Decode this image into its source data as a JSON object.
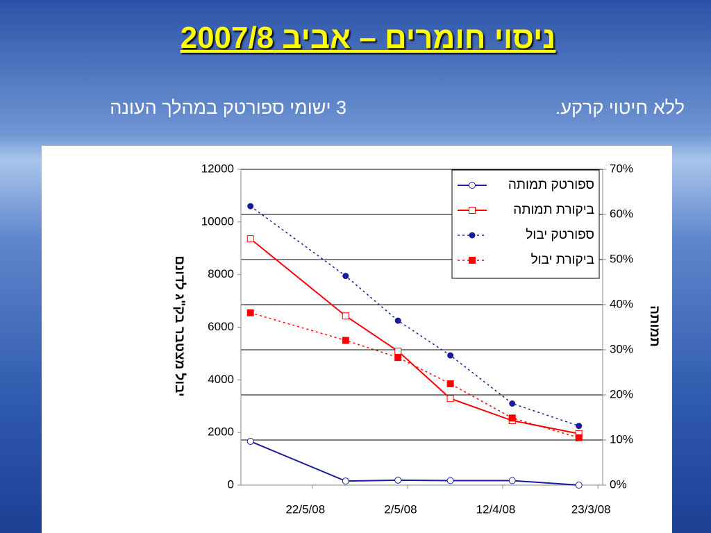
{
  "title": "ניסוי חומרים – אביב 2007/8",
  "subtitle_right": "ללא חיטוי קרקע.",
  "subtitle_left": "3 ישומי ספורטק במהלך העונה",
  "chart_data": {
    "type": "line",
    "x": [
      "4/6/08",
      "15/5/08",
      "4/5/08",
      "23/4/08",
      "10/4/08",
      "27/3/08"
    ],
    "xlim": [
      "6/6/08",
      "22/3/08"
    ],
    "xticks": [
      "22/5/08",
      "2/5/08",
      "12/4/08",
      "23/3/08"
    ],
    "ylim": [
      0,
      12000
    ],
    "yticks": [
      0,
      2000,
      4000,
      6000,
      8000,
      10000,
      12000
    ],
    "y2lim": [
      0,
      70
    ],
    "y2ticks": [
      {
        "value": 0,
        "label": "0%"
      },
      {
        "value": 10,
        "label": "10%"
      },
      {
        "value": 20,
        "label": "20%"
      },
      {
        "value": 30,
        "label": "30%"
      },
      {
        "value": 40,
        "label": "40%"
      },
      {
        "value": 50,
        "label": "50%"
      },
      {
        "value": 60,
        "label": "60%"
      },
      {
        "value": 70,
        "label": "70%"
      }
    ],
    "ylabel": "יבול מצטבר בק\"ג לדונם",
    "y2label": "תמותה",
    "grid": true,
    "legend": "upper-right",
    "series": [
      {
        "name": "ספורטק תמותה",
        "color": "#1a1a9c",
        "axis": "y2",
        "marker": "circle-open",
        "dash": "solid",
        "values": [
          9.7,
          0.9,
          1.1,
          1.0,
          1.0,
          0
        ]
      },
      {
        "name": "ביקורת תמותה",
        "color": "#ff0000",
        "axis": "y2",
        "marker": "square-open",
        "dash": "solid",
        "values": [
          54.6,
          37.5,
          29.7,
          19.2,
          14.3,
          11.4
        ]
      },
      {
        "name": "ספורטק יבול",
        "color": "#1a1a9c",
        "marker": "circle",
        "dash": "dotted",
        "values": [
          10600,
          7950,
          6250,
          4930,
          3100,
          2250
        ]
      },
      {
        "name": "ביקורת יבול",
        "color": "#ff0000",
        "marker": "square",
        "dash": "dotted",
        "values": [
          6550,
          5500,
          4850,
          3850,
          2550,
          1800
        ]
      }
    ]
  }
}
